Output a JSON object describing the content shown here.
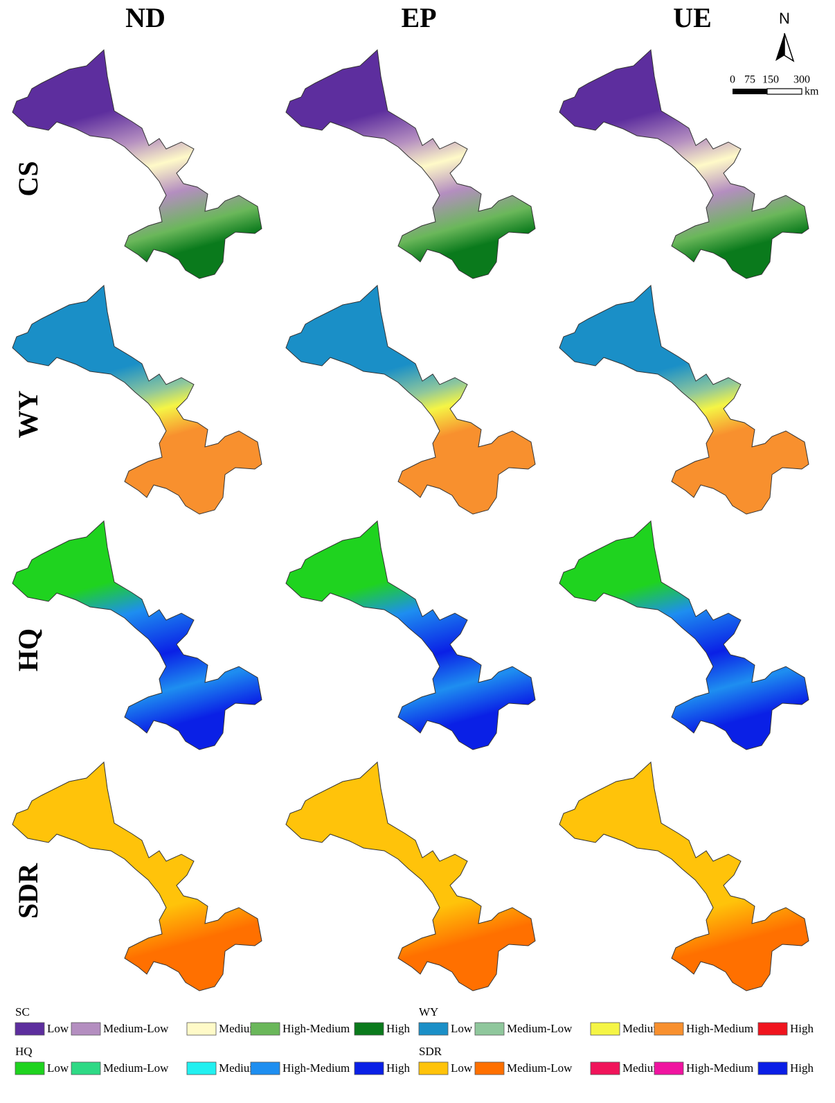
{
  "columns": [
    "ND",
    "EP",
    "UE"
  ],
  "rows": [
    "CS",
    "WY",
    "HQ",
    "SDR"
  ],
  "north": "N",
  "scale_bar": {
    "ticks": [
      0,
      75,
      150,
      300
    ],
    "unit": "km"
  },
  "legends": [
    {
      "title": "SC",
      "items": [
        {
          "label": "Low",
          "color": "#5d2e9e"
        },
        {
          "label": "Medium-Low",
          "color": "#b48ec0"
        },
        {
          "label": "Medium",
          "color": "#fffac8"
        },
        {
          "label": "High-Medium",
          "color": "#6ab75a"
        },
        {
          "label": "High",
          "color": "#0a7a1c"
        }
      ]
    },
    {
      "title": "WY",
      "items": [
        {
          "label": "Low",
          "color": "#1a8fc7"
        },
        {
          "label": "Medium-Low",
          "color": "#8fc79c"
        },
        {
          "label": "Medium",
          "color": "#f5f545"
        },
        {
          "label": "High-Medium",
          "color": "#f8902e"
        },
        {
          "label": "High",
          "color": "#f0141e"
        }
      ]
    },
    {
      "title": "HQ",
      "items": [
        {
          "label": "Low",
          "color": "#1fd31f"
        },
        {
          "label": "Medium-Low",
          "color": "#2ed985"
        },
        {
          "label": "Medium",
          "color": "#22f0f0"
        },
        {
          "label": "High-Medium",
          "color": "#1e8ef0"
        },
        {
          "label": "High",
          "color": "#0a20e6"
        }
      ]
    },
    {
      "title": "SDR",
      "items": [
        {
          "label": "Low",
          "color": "#ffc30a"
        },
        {
          "label": "Medium-Low",
          "color": "#ff7000"
        },
        {
          "label": "Medium",
          "color": "#f0145a"
        },
        {
          "label": "High-Medium",
          "color": "#f014a0"
        },
        {
          "label": "High",
          "color": "#0a1ee6"
        }
      ]
    }
  ]
}
